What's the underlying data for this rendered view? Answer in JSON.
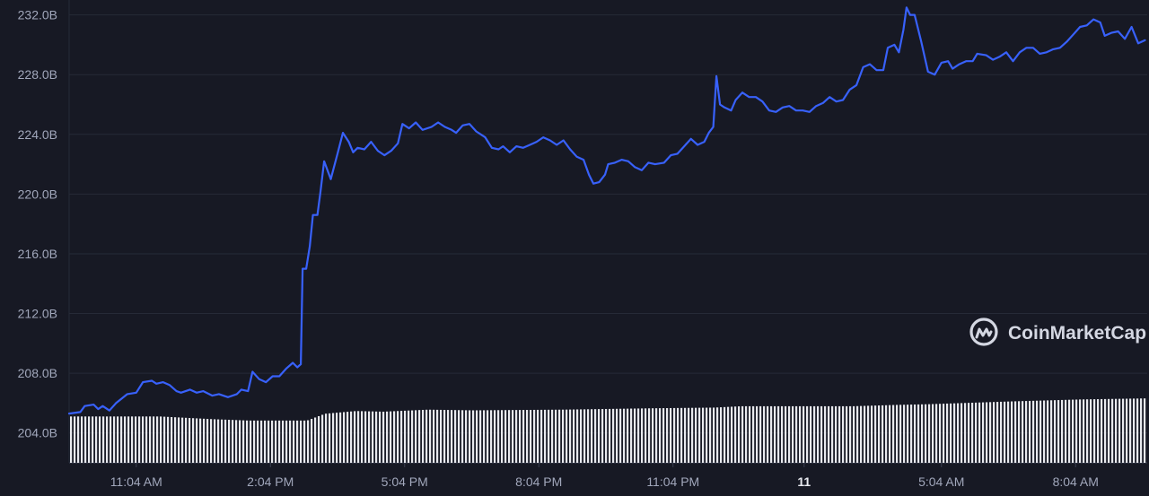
{
  "chart_data": {
    "type": "line",
    "ylim": [
      202,
      233
    ],
    "y_ticks": [
      "232.0B",
      "228.0B",
      "224.0B",
      "220.0B",
      "216.0B",
      "212.0B",
      "208.0B",
      "204.0B"
    ],
    "y_tick_values": [
      232,
      228,
      224,
      220,
      216,
      212,
      208,
      204
    ],
    "x_ticks": [
      "11:04 AM",
      "2:04 PM",
      "5:04 PM",
      "8:04 PM",
      "11:04 PM",
      "11",
      "5:04 AM",
      "8:04 AM"
    ],
    "x_tick_hours": [
      1.5,
      4.5,
      7.5,
      10.5,
      13.5,
      16.43,
      19.5,
      22.5
    ],
    "x_range_hours": [
      0,
      24.1
    ],
    "grid": true,
    "line_color": "#3861fb",
    "volume_color": "#e8e9ee",
    "series": [
      {
        "values": [
          [
            0.0,
            205.3
          ],
          [
            0.25,
            205.4
          ],
          [
            0.35,
            205.8
          ],
          [
            0.55,
            205.9
          ],
          [
            0.65,
            205.6
          ],
          [
            0.75,
            205.8
          ],
          [
            0.9,
            205.5
          ],
          [
            1.05,
            206.0
          ],
          [
            1.3,
            206.6
          ],
          [
            1.5,
            206.7
          ],
          [
            1.65,
            207.4
          ],
          [
            1.85,
            207.5
          ],
          [
            1.95,
            207.3
          ],
          [
            2.1,
            207.4
          ],
          [
            2.25,
            207.2
          ],
          [
            2.4,
            206.8
          ],
          [
            2.5,
            206.7
          ],
          [
            2.7,
            206.9
          ],
          [
            2.85,
            206.7
          ],
          [
            3.0,
            206.8
          ],
          [
            3.2,
            206.5
          ],
          [
            3.35,
            206.6
          ],
          [
            3.55,
            206.4
          ],
          [
            3.75,
            206.6
          ],
          [
            3.85,
            206.9
          ],
          [
            4.0,
            206.8
          ],
          [
            4.1,
            208.1
          ],
          [
            4.25,
            207.6
          ],
          [
            4.4,
            207.4
          ],
          [
            4.55,
            207.8
          ],
          [
            4.7,
            207.8
          ],
          [
            4.85,
            208.3
          ],
          [
            5.0,
            208.7
          ],
          [
            5.1,
            208.4
          ],
          [
            5.18,
            208.6
          ],
          [
            5.22,
            215.0
          ],
          [
            5.3,
            215.0
          ],
          [
            5.38,
            216.5
          ],
          [
            5.45,
            218.6
          ],
          [
            5.55,
            218.6
          ],
          [
            5.62,
            220.2
          ],
          [
            5.7,
            222.2
          ],
          [
            5.85,
            221.0
          ],
          [
            6.0,
            222.7
          ],
          [
            6.12,
            224.1
          ],
          [
            6.25,
            223.5
          ],
          [
            6.35,
            222.8
          ],
          [
            6.45,
            223.1
          ],
          [
            6.6,
            223.0
          ],
          [
            6.75,
            223.5
          ],
          [
            6.9,
            222.9
          ],
          [
            7.05,
            222.6
          ],
          [
            7.2,
            222.9
          ],
          [
            7.35,
            223.4
          ],
          [
            7.45,
            224.7
          ],
          [
            7.6,
            224.4
          ],
          [
            7.75,
            224.8
          ],
          [
            7.9,
            224.3
          ],
          [
            8.1,
            224.5
          ],
          [
            8.25,
            224.8
          ],
          [
            8.4,
            224.5
          ],
          [
            8.55,
            224.3
          ],
          [
            8.65,
            224.1
          ],
          [
            8.8,
            224.6
          ],
          [
            8.95,
            224.7
          ],
          [
            9.1,
            224.2
          ],
          [
            9.3,
            223.8
          ],
          [
            9.45,
            223.1
          ],
          [
            9.6,
            223.0
          ],
          [
            9.7,
            223.2
          ],
          [
            9.85,
            222.8
          ],
          [
            10.0,
            223.2
          ],
          [
            10.15,
            223.1
          ],
          [
            10.3,
            223.3
          ],
          [
            10.45,
            223.5
          ],
          [
            10.6,
            223.8
          ],
          [
            10.75,
            223.6
          ],
          [
            10.9,
            223.3
          ],
          [
            11.05,
            223.6
          ],
          [
            11.2,
            223.0
          ],
          [
            11.35,
            222.5
          ],
          [
            11.5,
            222.3
          ],
          [
            11.62,
            221.3
          ],
          [
            11.72,
            220.7
          ],
          [
            11.85,
            220.8
          ],
          [
            11.98,
            221.3
          ],
          [
            12.05,
            222.0
          ],
          [
            12.2,
            222.1
          ],
          [
            12.35,
            222.3
          ],
          [
            12.5,
            222.2
          ],
          [
            12.65,
            221.8
          ],
          [
            12.8,
            221.6
          ],
          [
            12.95,
            222.1
          ],
          [
            13.1,
            222.0
          ],
          [
            13.3,
            222.1
          ],
          [
            13.45,
            222.6
          ],
          [
            13.6,
            222.7
          ],
          [
            13.75,
            223.2
          ],
          [
            13.9,
            223.7
          ],
          [
            14.05,
            223.3
          ],
          [
            14.2,
            223.5
          ],
          [
            14.3,
            224.1
          ],
          [
            14.4,
            224.5
          ],
          [
            14.47,
            227.9
          ],
          [
            14.55,
            226.0
          ],
          [
            14.65,
            225.8
          ],
          [
            14.8,
            225.6
          ],
          [
            14.9,
            226.3
          ],
          [
            15.05,
            226.8
          ],
          [
            15.2,
            226.5
          ],
          [
            15.35,
            226.5
          ],
          [
            15.5,
            226.2
          ],
          [
            15.65,
            225.6
          ],
          [
            15.8,
            225.5
          ],
          [
            15.95,
            225.8
          ],
          [
            16.1,
            225.9
          ],
          [
            16.25,
            225.6
          ],
          [
            16.4,
            225.6
          ],
          [
            16.55,
            225.5
          ],
          [
            16.7,
            225.9
          ],
          [
            16.85,
            226.1
          ],
          [
            17.0,
            226.5
          ],
          [
            17.15,
            226.2
          ],
          [
            17.3,
            226.3
          ],
          [
            17.45,
            227.0
          ],
          [
            17.6,
            227.3
          ],
          [
            17.75,
            228.5
          ],
          [
            17.9,
            228.7
          ],
          [
            18.05,
            228.3
          ],
          [
            18.2,
            228.3
          ],
          [
            18.3,
            229.8
          ],
          [
            18.45,
            230.0
          ],
          [
            18.55,
            229.5
          ],
          [
            18.65,
            231.0
          ],
          [
            18.72,
            232.5
          ],
          [
            18.8,
            232.0
          ],
          [
            18.9,
            232.0
          ],
          [
            19.05,
            230.2
          ],
          [
            19.2,
            228.2
          ],
          [
            19.35,
            228.0
          ],
          [
            19.5,
            228.8
          ],
          [
            19.65,
            228.9
          ],
          [
            19.75,
            228.4
          ],
          [
            19.9,
            228.7
          ],
          [
            20.05,
            228.9
          ],
          [
            20.2,
            228.9
          ],
          [
            20.3,
            229.4
          ],
          [
            20.5,
            229.3
          ],
          [
            20.65,
            229.0
          ],
          [
            20.8,
            229.2
          ],
          [
            20.95,
            229.5
          ],
          [
            21.1,
            228.9
          ],
          [
            21.25,
            229.5
          ],
          [
            21.4,
            229.8
          ],
          [
            21.55,
            229.8
          ],
          [
            21.7,
            229.4
          ],
          [
            21.85,
            229.5
          ],
          [
            22.0,
            229.7
          ],
          [
            22.15,
            229.8
          ],
          [
            22.3,
            230.2
          ],
          [
            22.45,
            230.7
          ],
          [
            22.6,
            231.2
          ],
          [
            22.75,
            231.3
          ],
          [
            22.9,
            231.7
          ],
          [
            23.05,
            231.5
          ],
          [
            23.15,
            230.6
          ],
          [
            23.3,
            230.8
          ],
          [
            23.45,
            230.9
          ],
          [
            23.6,
            230.4
          ],
          [
            23.75,
            231.2
          ],
          [
            23.9,
            230.1
          ],
          [
            24.05,
            230.3
          ],
          [
            24.2,
            230.3
          ],
          [
            24.35,
            230.0
          ],
          [
            24.5,
            230.1
          ]
        ]
      }
    ],
    "volume_levels": [
      [
        0.0,
        0.68
      ],
      [
        2.0,
        0.68
      ],
      [
        3.2,
        0.64
      ],
      [
        4.0,
        0.62
      ],
      [
        5.3,
        0.62
      ],
      [
        5.7,
        0.72
      ],
      [
        6.4,
        0.76
      ],
      [
        7.0,
        0.75
      ],
      [
        8.0,
        0.78
      ],
      [
        9.0,
        0.77
      ],
      [
        11.0,
        0.78
      ],
      [
        12.0,
        0.79
      ],
      [
        13.0,
        0.8
      ],
      [
        14.4,
        0.81
      ],
      [
        15.0,
        0.83
      ],
      [
        16.0,
        0.83
      ],
      [
        17.5,
        0.83
      ],
      [
        18.5,
        0.85
      ],
      [
        19.2,
        0.86
      ],
      [
        21.0,
        0.9
      ],
      [
        22.6,
        0.93
      ],
      [
        24.5,
        0.95
      ]
    ]
  },
  "watermark": {
    "text": "CoinMarketCap"
  }
}
